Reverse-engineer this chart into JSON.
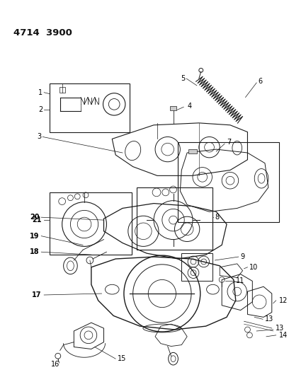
{
  "title": "4714  3900",
  "bg_color": "#ffffff",
  "lc": "#1a1a1a",
  "fig_width": 4.08,
  "fig_height": 5.33,
  "dpi": 100
}
